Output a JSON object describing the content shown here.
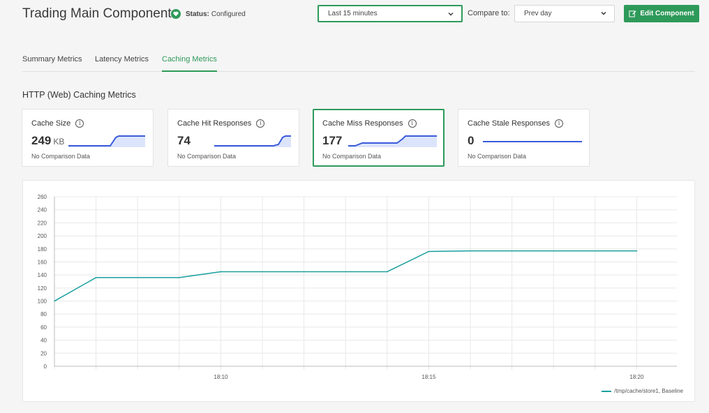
{
  "header": {
    "title": "Trading Main Component",
    "status_label": "Status:",
    "status_value": "Configured",
    "time_range": "Last 15 minutes",
    "compare_label": "Compare to:",
    "compare_value": "Prev day",
    "edit_button": "Edit Component"
  },
  "tabs": [
    {
      "label": "Summary Metrics"
    },
    {
      "label": "Latency Metrics"
    },
    {
      "label": "Caching Metrics"
    }
  ],
  "section_title": "HTTP (Web) Caching Metrics",
  "cards": [
    {
      "title": "Cache Size",
      "value": "249",
      "unit": "KB",
      "footer": "No Comparison Data"
    },
    {
      "title": "Cache Hit Responses",
      "value": "74",
      "unit": "",
      "footer": "No Comparison Data"
    },
    {
      "title": "Cache Miss Responses",
      "value": "177",
      "unit": "",
      "footer": "No Comparison Data"
    },
    {
      "title": "Cache Stale Responses",
      "value": "0",
      "unit": "",
      "footer": "No Comparison Data"
    }
  ],
  "colors": {
    "accent": "#2e9a5a",
    "series": "#1a9e9e",
    "sparkline": "#3b5bdb"
  },
  "icons": {
    "status": "heart-icon",
    "dropdown": "chevron-down-icon",
    "edit": "edit-icon",
    "info": "info-icon"
  },
  "chart_data": {
    "type": "line",
    "title": "",
    "xlabel": "",
    "ylabel": "",
    "ylim": [
      0,
      260
    ],
    "yticks": [
      "260",
      "240",
      "220",
      "200",
      "180",
      "160",
      "140",
      "120",
      "100",
      "80",
      "60",
      "40",
      "20",
      "0"
    ],
    "xticks": [
      "18:10",
      "18:15",
      "18:20"
    ],
    "grid": true,
    "legend_position": "bottom-right",
    "series": [
      {
        "name": "/tmp/cache/store1, Baseline",
        "x": [
          "18:06",
          "18:07",
          "18:09",
          "18:10",
          "18:14",
          "18:15",
          "18:16",
          "18:20"
        ],
        "values": [
          100,
          136,
          136,
          145,
          145,
          176,
          177,
          177
        ]
      }
    ]
  }
}
